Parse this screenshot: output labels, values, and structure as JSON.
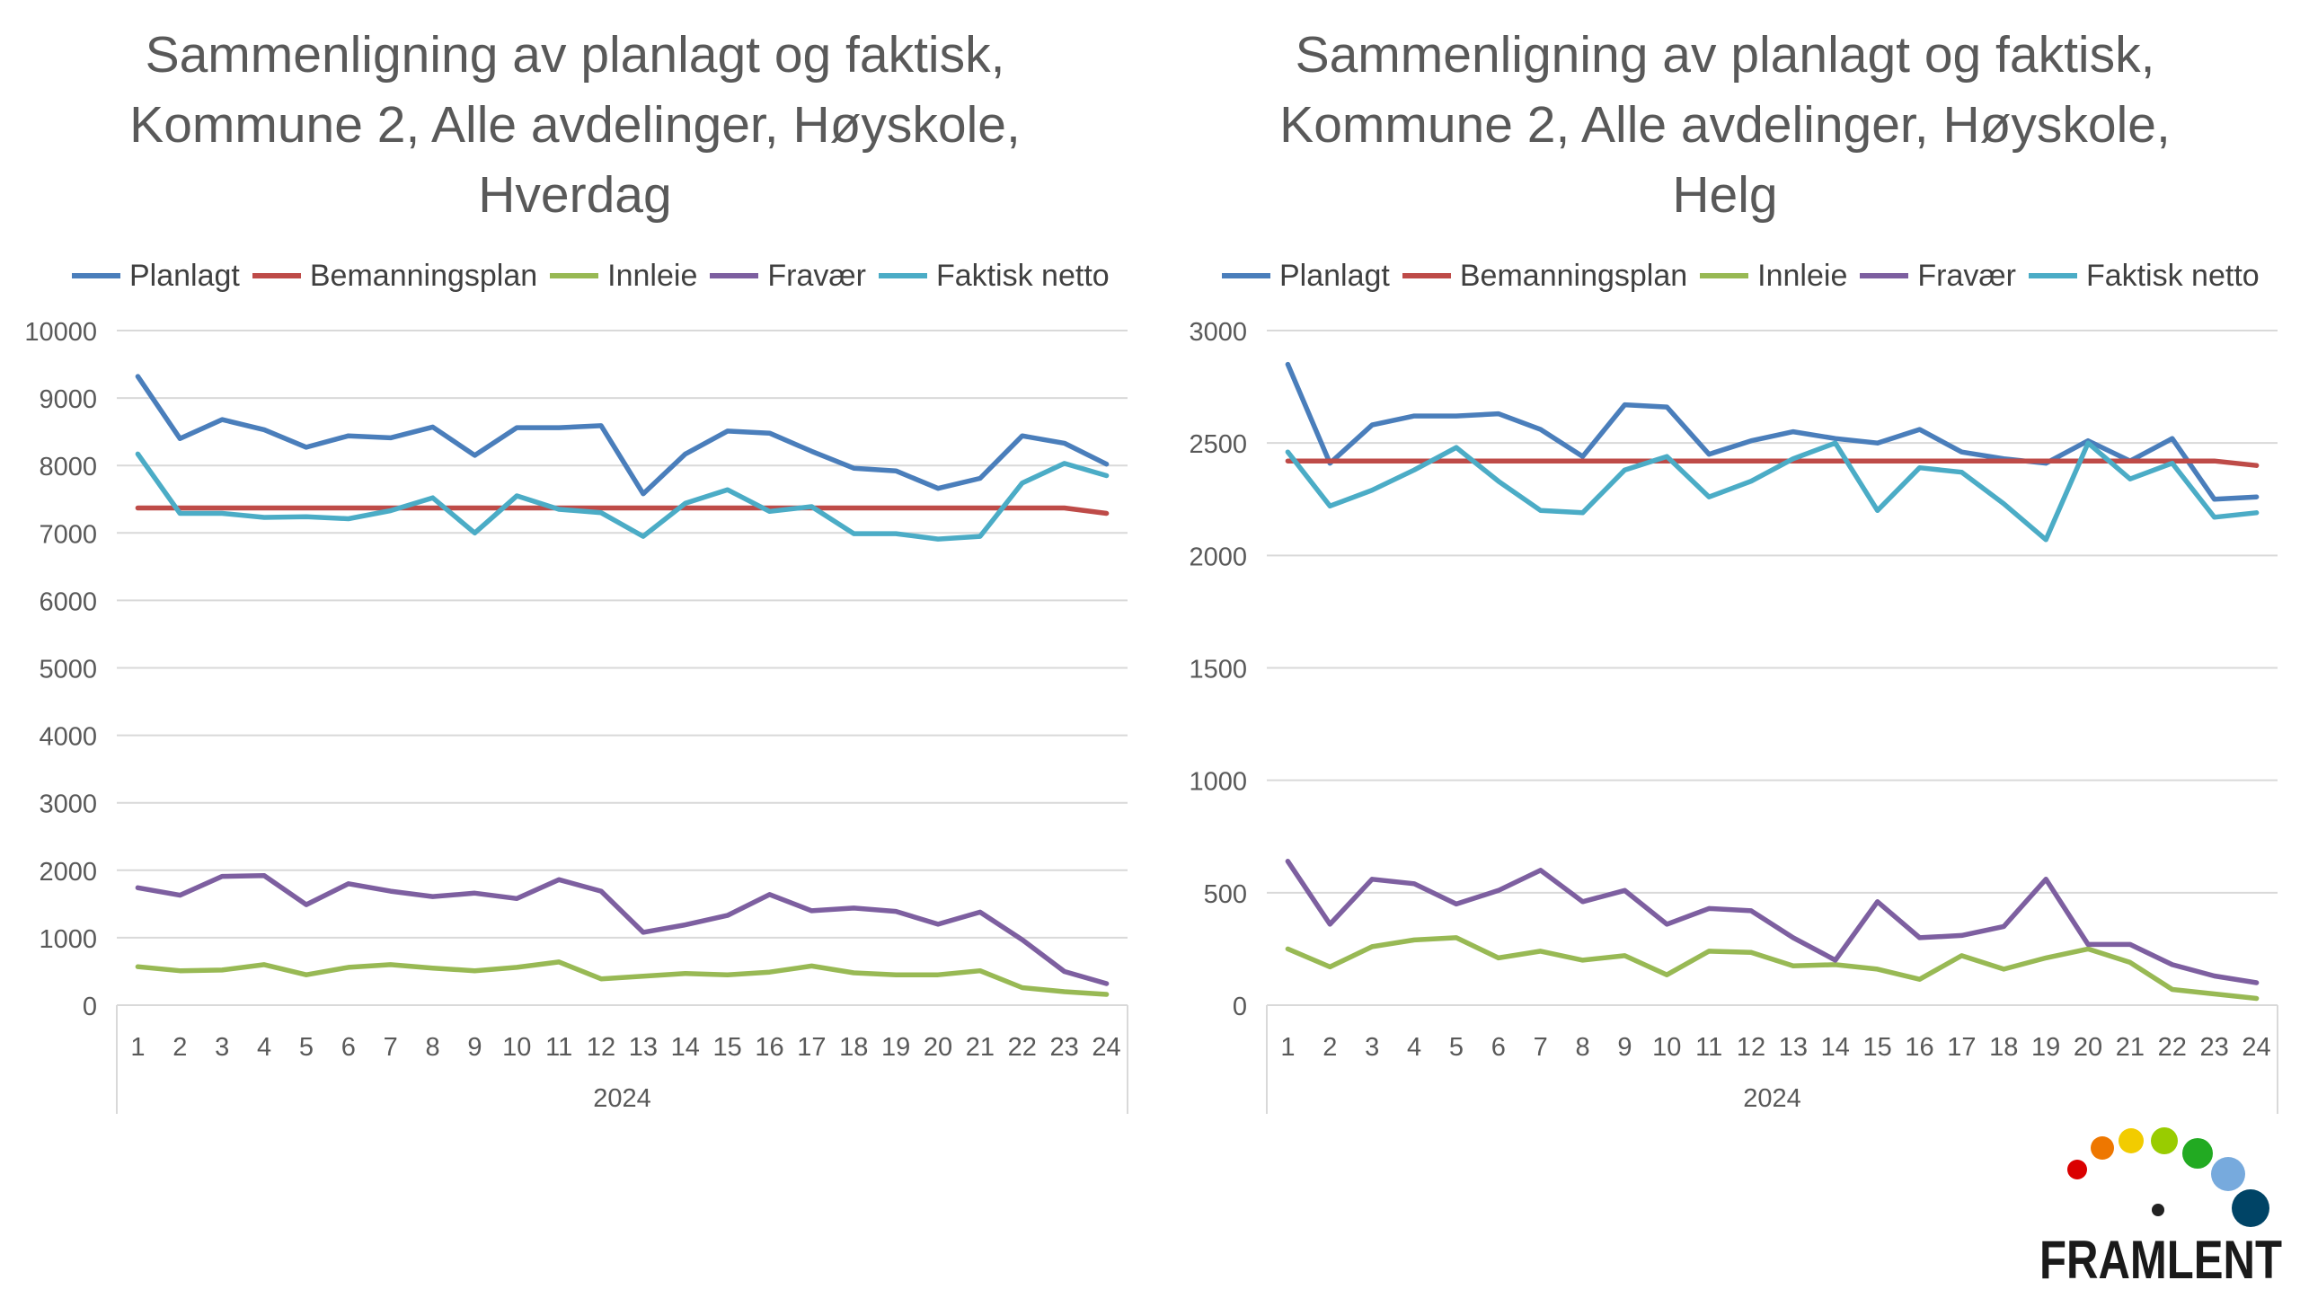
{
  "colors": {
    "Planlagt": "#4A7EBB",
    "Bemanningsplan": "#BE4B48",
    "Innleie": "#98B954",
    "Fravær": "#7D5FA0",
    "Faktisk netto": "#4BACC6",
    "grid": "#D9D9D9",
    "axis_text": "#595959"
  },
  "logo": {
    "text": "FRAMLENT",
    "dot_colors": [
      "#DA0000",
      "#EE7700",
      "#F2CC00",
      "#99CC00",
      "#22AA22",
      "#77AADD",
      "#004466"
    ]
  },
  "chart_data": [
    {
      "type": "line",
      "title_lines": [
        "Sammenligning av planlagt og faktisk,",
        "Kommune 2, Alle avdelinger, Høyskole,",
        "Hverdag"
      ],
      "xlabel": "2024",
      "categories": [
        "1",
        "2",
        "3",
        "4",
        "5",
        "6",
        "7",
        "8",
        "9",
        "10",
        "11",
        "12",
        "13",
        "14",
        "15",
        "16",
        "17",
        "18",
        "19",
        "20",
        "21",
        "22",
        "23",
        "24"
      ],
      "ylim": [
        0,
        10000
      ],
      "yticks": [
        "0",
        "1000",
        "2000",
        "3000",
        "4000",
        "5000",
        "6000",
        "7000",
        "8000",
        "9000",
        "10000"
      ],
      "grid": true,
      "legend": "top",
      "series": [
        {
          "name": "Planlagt",
          "values": [
            9320,
            8400,
            8680,
            8530,
            8270,
            8440,
            8410,
            8570,
            8150,
            8560,
            8560,
            8590,
            7580,
            8170,
            8510,
            8480,
            8210,
            7960,
            7920,
            7660,
            7810,
            8440,
            8330,
            8020
          ]
        },
        {
          "name": "Bemanningsplan",
          "values": [
            7370,
            7370,
            7370,
            7370,
            7370,
            7370,
            7370,
            7370,
            7370,
            7370,
            7370,
            7370,
            7370,
            7370,
            7370,
            7370,
            7370,
            7370,
            7370,
            7370,
            7370,
            7370,
            7370,
            7290
          ]
        },
        {
          "name": "Innleie",
          "values": [
            570,
            510,
            520,
            600,
            450,
            560,
            600,
            550,
            510,
            560,
            640,
            390,
            430,
            470,
            450,
            490,
            580,
            480,
            450,
            450,
            510,
            260,
            200,
            160
          ]
        },
        {
          "name": "Fravær",
          "values": [
            1740,
            1630,
            1910,
            1920,
            1490,
            1800,
            1690,
            1610,
            1660,
            1580,
            1860,
            1690,
            1080,
            1190,
            1330,
            1640,
            1400,
            1440,
            1390,
            1200,
            1380,
            970,
            500,
            320
          ]
        },
        {
          "name": "Faktisk netto",
          "values": [
            8170,
            7290,
            7290,
            7230,
            7240,
            7210,
            7330,
            7520,
            7000,
            7550,
            7350,
            7300,
            6950,
            7440,
            7640,
            7320,
            7390,
            6990,
            6990,
            6910,
            6950,
            7740,
            8030,
            7850
          ]
        }
      ]
    },
    {
      "type": "line",
      "title_lines": [
        "Sammenligning av planlagt og faktisk,",
        "Kommune 2, Alle avdelinger, Høyskole,",
        "Helg"
      ],
      "xlabel": "2024",
      "categories": [
        "1",
        "2",
        "3",
        "4",
        "5",
        "6",
        "7",
        "8",
        "9",
        "10",
        "11",
        "12",
        "13",
        "14",
        "15",
        "16",
        "17",
        "18",
        "19",
        "20",
        "21",
        "22",
        "23",
        "24"
      ],
      "ylim": [
        0,
        3000
      ],
      "yticks": [
        "0",
        "500",
        "1000",
        "1500",
        "2000",
        "2500",
        "3000"
      ],
      "grid": true,
      "legend": "top",
      "series": [
        {
          "name": "Planlagt",
          "values": [
            2850,
            2410,
            2580,
            2620,
            2620,
            2630,
            2560,
            2440,
            2670,
            2660,
            2450,
            2510,
            2550,
            2520,
            2500,
            2560,
            2460,
            2430,
            2410,
            2510,
            2420,
            2520,
            2250,
            2260
          ]
        },
        {
          "name": "Bemanningsplan",
          "values": [
            2420,
            2420,
            2420,
            2420,
            2420,
            2420,
            2420,
            2420,
            2420,
            2420,
            2420,
            2420,
            2420,
            2420,
            2420,
            2420,
            2420,
            2420,
            2420,
            2420,
            2420,
            2420,
            2420,
            2400
          ]
        },
        {
          "name": "Innleie",
          "values": [
            250,
            170,
            260,
            290,
            300,
            210,
            240,
            200,
            220,
            135,
            240,
            235,
            175,
            180,
            160,
            115,
            220,
            160,
            210,
            250,
            190,
            70,
            50,
            30
          ]
        },
        {
          "name": "Fravær",
          "values": [
            640,
            360,
            560,
            540,
            450,
            510,
            600,
            460,
            510,
            360,
            430,
            420,
            300,
            200,
            460,
            300,
            310,
            350,
            560,
            270,
            270,
            180,
            130,
            100
          ]
        },
        {
          "name": "Faktisk netto",
          "values": [
            2460,
            2220,
            2290,
            2380,
            2480,
            2330,
            2200,
            2190,
            2380,
            2440,
            2260,
            2330,
            2430,
            2500,
            2200,
            2390,
            2370,
            2230,
            2070,
            2500,
            2340,
            2410,
            2170,
            2190
          ]
        }
      ]
    }
  ]
}
